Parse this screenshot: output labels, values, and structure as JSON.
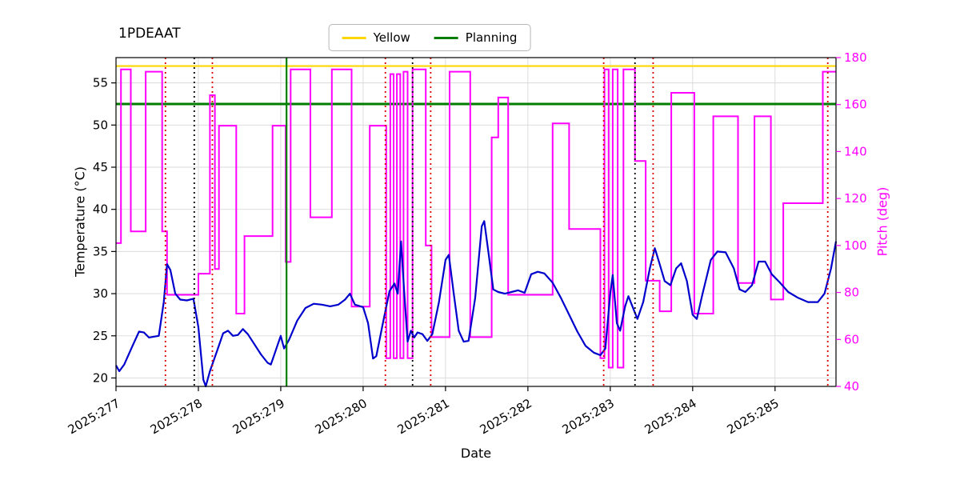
{
  "title": "1PDEAAT",
  "legend": {
    "items": [
      {
        "label": "Yellow",
        "color": "#ffd700"
      },
      {
        "label": "Planning",
        "color": "#007d00"
      }
    ]
  },
  "chart_data": {
    "type": "line",
    "title": "1PDEAAT",
    "xlabel": "Date",
    "ylabel_left": "Temperature (°C)",
    "ylabel_right": "Pitch (deg)",
    "x_domain": [
      277.0,
      285.74
    ],
    "x_tick_values": [
      277,
      278,
      279,
      280,
      281,
      282,
      283,
      284,
      285
    ],
    "x_tick_labels": [
      "2025:277",
      "2025:278",
      "2025:279",
      "2025:280",
      "2025:281",
      "2025:282",
      "2025:283",
      "2025:284",
      "2025:285"
    ],
    "temp_ylim": [
      19,
      58
    ],
    "temp_ticks": [
      20,
      25,
      30,
      35,
      40,
      45,
      50,
      55
    ],
    "pitch_ylim": [
      40,
      180
    ],
    "pitch_ticks": [
      40,
      60,
      80,
      100,
      120,
      140,
      160,
      180
    ],
    "limits": {
      "yellow": 57.0,
      "planning": 52.5
    },
    "colors": {
      "temperature": "#0000cd",
      "pitch": "#ff00ff",
      "yellow_limit": "#ffd700",
      "planning_limit": "#007d00",
      "red_event": "#dd0000",
      "black_event": "#000000",
      "green_event": "#008000",
      "grid": "#d9d9d9",
      "axis": "#000000"
    },
    "events": {
      "red_dotted": [
        277.6,
        278.17,
        280.27,
        280.82,
        282.92,
        283.52,
        285.64
      ],
      "black_dotted": [
        277.95,
        280.6,
        283.3
      ],
      "green_solid": [
        279.07
      ]
    },
    "series": [
      {
        "name": "temperature",
        "axis": "left",
        "style": "line",
        "points": [
          [
            277.0,
            21.5
          ],
          [
            277.04,
            20.8
          ],
          [
            277.1,
            21.6
          ],
          [
            277.2,
            23.8
          ],
          [
            277.28,
            25.5
          ],
          [
            277.34,
            25.4
          ],
          [
            277.4,
            24.8
          ],
          [
            277.46,
            24.9
          ],
          [
            277.52,
            25.0
          ],
          [
            277.58,
            29.0
          ],
          [
            277.62,
            33.5
          ],
          [
            277.66,
            32.8
          ],
          [
            277.72,
            30.0
          ],
          [
            277.78,
            29.3
          ],
          [
            277.86,
            29.2
          ],
          [
            277.94,
            29.4
          ],
          [
            278.0,
            26.0
          ],
          [
            278.06,
            19.8
          ],
          [
            278.09,
            19.0
          ],
          [
            278.14,
            20.8
          ],
          [
            278.22,
            23.0
          ],
          [
            278.3,
            25.3
          ],
          [
            278.36,
            25.6
          ],
          [
            278.42,
            25.0
          ],
          [
            278.48,
            25.1
          ],
          [
            278.54,
            25.8
          ],
          [
            278.6,
            25.2
          ],
          [
            278.68,
            24.0
          ],
          [
            278.76,
            22.8
          ],
          [
            278.84,
            21.8
          ],
          [
            278.88,
            21.6
          ],
          [
            278.94,
            23.3
          ],
          [
            279.0,
            25.0
          ],
          [
            279.04,
            23.5
          ],
          [
            279.1,
            24.5
          ],
          [
            279.2,
            26.8
          ],
          [
            279.3,
            28.3
          ],
          [
            279.4,
            28.8
          ],
          [
            279.5,
            28.7
          ],
          [
            279.6,
            28.5
          ],
          [
            279.7,
            28.7
          ],
          [
            279.78,
            29.3
          ],
          [
            279.84,
            30.0
          ],
          [
            279.9,
            28.7
          ],
          [
            280.0,
            28.4
          ],
          [
            280.06,
            26.5
          ],
          [
            280.12,
            22.3
          ],
          [
            280.16,
            22.6
          ],
          [
            280.24,
            26.5
          ],
          [
            280.32,
            30.3
          ],
          [
            280.38,
            31.2
          ],
          [
            280.42,
            30.0
          ],
          [
            280.46,
            36.2
          ],
          [
            280.5,
            30.0
          ],
          [
            280.54,
            24.3
          ],
          [
            280.58,
            25.6
          ],
          [
            280.62,
            24.8
          ],
          [
            280.66,
            25.4
          ],
          [
            280.72,
            25.2
          ],
          [
            280.78,
            24.4
          ],
          [
            280.84,
            25.2
          ],
          [
            280.92,
            29.0
          ],
          [
            281.0,
            34.0
          ],
          [
            281.04,
            34.6
          ],
          [
            281.1,
            30.0
          ],
          [
            281.16,
            25.6
          ],
          [
            281.22,
            24.3
          ],
          [
            281.28,
            24.4
          ],
          [
            281.36,
            29.5
          ],
          [
            281.44,
            38.0
          ],
          [
            281.47,
            38.6
          ],
          [
            281.52,
            35.0
          ],
          [
            281.58,
            30.5
          ],
          [
            281.64,
            30.2
          ],
          [
            281.72,
            30.0
          ],
          [
            281.8,
            30.2
          ],
          [
            281.88,
            30.4
          ],
          [
            281.96,
            30.1
          ],
          [
            282.04,
            32.3
          ],
          [
            282.12,
            32.6
          ],
          [
            282.2,
            32.4
          ],
          [
            282.3,
            31.3
          ],
          [
            282.4,
            29.5
          ],
          [
            282.5,
            27.5
          ],
          [
            282.6,
            25.5
          ],
          [
            282.7,
            23.8
          ],
          [
            282.8,
            23.0
          ],
          [
            282.88,
            22.7
          ],
          [
            282.94,
            23.5
          ],
          [
            283.0,
            30.0
          ],
          [
            283.03,
            32.2
          ],
          [
            283.08,
            26.5
          ],
          [
            283.12,
            25.6
          ],
          [
            283.18,
            28.5
          ],
          [
            283.22,
            29.7
          ],
          [
            283.28,
            28.2
          ],
          [
            283.33,
            27.0
          ],
          [
            283.4,
            29.0
          ],
          [
            283.48,
            33.0
          ],
          [
            283.54,
            35.4
          ],
          [
            283.6,
            33.5
          ],
          [
            283.66,
            31.5
          ],
          [
            283.73,
            31.0
          ],
          [
            283.8,
            33.0
          ],
          [
            283.86,
            33.6
          ],
          [
            283.93,
            31.5
          ],
          [
            284.0,
            27.5
          ],
          [
            284.05,
            27.0
          ],
          [
            284.12,
            30.0
          ],
          [
            284.22,
            34.0
          ],
          [
            284.3,
            35.0
          ],
          [
            284.4,
            34.9
          ],
          [
            284.5,
            33.0
          ],
          [
            284.57,
            30.5
          ],
          [
            284.64,
            30.2
          ],
          [
            284.72,
            31.0
          ],
          [
            284.8,
            33.8
          ],
          [
            284.88,
            33.8
          ],
          [
            284.96,
            32.3
          ],
          [
            285.06,
            31.3
          ],
          [
            285.16,
            30.2
          ],
          [
            285.28,
            29.5
          ],
          [
            285.4,
            29.0
          ],
          [
            285.52,
            29.0
          ],
          [
            285.6,
            30.0
          ],
          [
            285.68,
            33.0
          ],
          [
            285.74,
            36.2
          ]
        ]
      },
      {
        "name": "pitch",
        "axis": "right",
        "style": "step",
        "points": [
          [
            277.0,
            101
          ],
          [
            277.06,
            175
          ],
          [
            277.18,
            106
          ],
          [
            277.36,
            174
          ],
          [
            277.56,
            106
          ],
          [
            277.62,
            79
          ],
          [
            278.0,
            88
          ],
          [
            278.14,
            164
          ],
          [
            278.2,
            90
          ],
          [
            278.25,
            151
          ],
          [
            278.46,
            71
          ],
          [
            278.56,
            104
          ],
          [
            278.9,
            151
          ],
          [
            279.06,
            93
          ],
          [
            279.12,
            175
          ],
          [
            279.36,
            112
          ],
          [
            279.62,
            175
          ],
          [
            279.86,
            74
          ],
          [
            280.08,
            151
          ],
          [
            280.28,
            52
          ],
          [
            280.33,
            173
          ],
          [
            280.37,
            52
          ],
          [
            280.41,
            173
          ],
          [
            280.45,
            52
          ],
          [
            280.49,
            174
          ],
          [
            280.54,
            52
          ],
          [
            280.6,
            175
          ],
          [
            280.76,
            100
          ],
          [
            280.83,
            61
          ],
          [
            281.05,
            174
          ],
          [
            281.3,
            61
          ],
          [
            281.56,
            146
          ],
          [
            281.64,
            163
          ],
          [
            281.76,
            79
          ],
          [
            282.3,
            152
          ],
          [
            282.5,
            107
          ],
          [
            282.88,
            52
          ],
          [
            282.93,
            175
          ],
          [
            282.98,
            48
          ],
          [
            283.03,
            175
          ],
          [
            283.09,
            48
          ],
          [
            283.16,
            175
          ],
          [
            283.3,
            136
          ],
          [
            283.43,
            85
          ],
          [
            283.6,
            72
          ],
          [
            283.74,
            165
          ],
          [
            284.02,
            71
          ],
          [
            284.25,
            155
          ],
          [
            284.55,
            84
          ],
          [
            284.75,
            155
          ],
          [
            284.95,
            77
          ],
          [
            285.1,
            118
          ],
          [
            285.58,
            174
          ]
        ]
      }
    ]
  }
}
